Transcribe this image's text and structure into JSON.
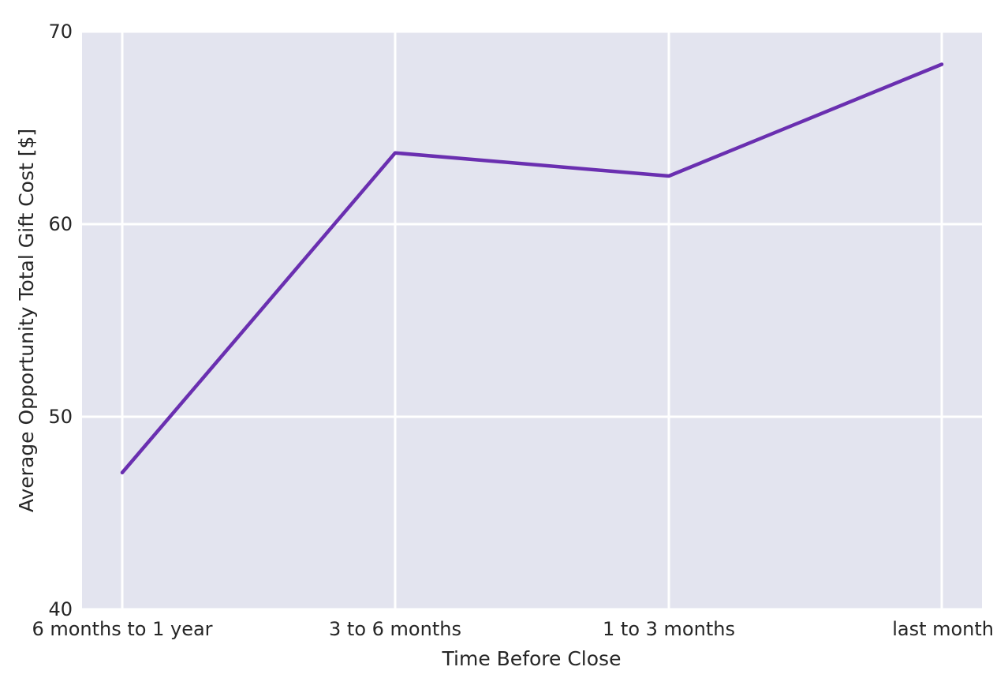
{
  "chart_data": {
    "type": "line",
    "categories": [
      "6 months to 1 year",
      "3 to 6 months",
      "1 to 3 months",
      "last month"
    ],
    "series": [
      {
        "values": [
          47.1,
          63.7,
          62.5,
          68.3
        ]
      }
    ],
    "xlabel": "Time Before Close",
    "ylabel": "Average Opportunity Total Gift Cost [$]",
    "ylim": [
      40,
      70
    ],
    "yticks": [
      40,
      50,
      60,
      70
    ],
    "grid": true,
    "colors": {
      "line": "#6a2fb0",
      "plot_background": "#e3e4ef",
      "grid": "#ffffff"
    }
  }
}
